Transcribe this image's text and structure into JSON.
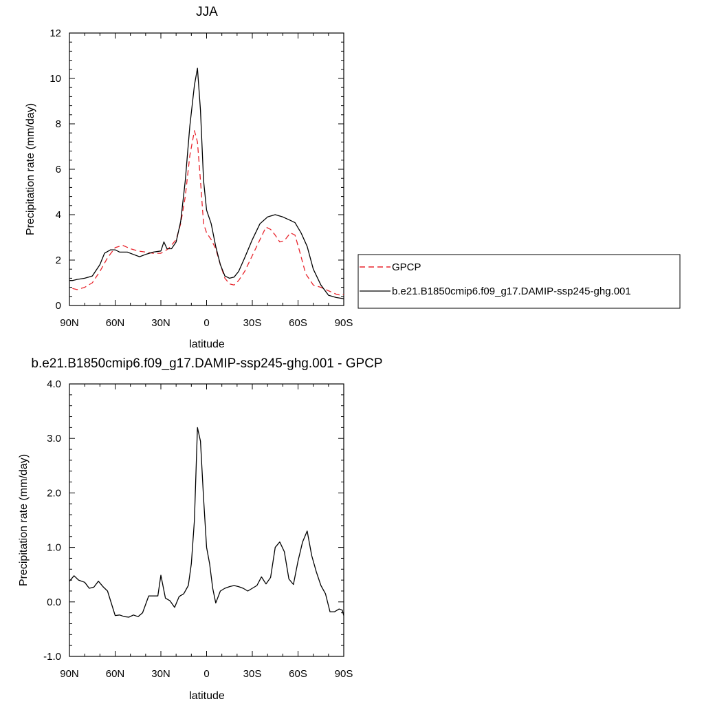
{
  "chart_data": [
    {
      "type": "line",
      "title": "JJA",
      "xlabel": "latitude",
      "ylabel": "Precipitation rate (mm/day)",
      "xlim": [
        -90,
        90
      ],
      "ylim": [
        0,
        12
      ],
      "x_tick_values": [
        -90,
        -60,
        -30,
        0,
        30,
        60,
        90
      ],
      "x_tick_labels": [
        "90N",
        "60N",
        "30N",
        "0",
        "30S",
        "60S",
        "90S"
      ],
      "y_tick_values": [
        0,
        2,
        4,
        6,
        8,
        10,
        12
      ],
      "y_tick_labels": [
        "0",
        "2",
        "4",
        "6",
        "8",
        "10",
        "12"
      ],
      "legend_position": "right",
      "series": [
        {
          "name": "GPCP",
          "color": "#e8242c",
          "dash": "dashed",
          "points": [
            [
              -88,
              0.75
            ],
            [
              -85,
              0.7
            ],
            [
              -80,
              0.8
            ],
            [
              -75,
              1.0
            ],
            [
              -70,
              1.5
            ],
            [
              -65,
              2.1
            ],
            [
              -60,
              2.55
            ],
            [
              -55,
              2.65
            ],
            [
              -50,
              2.5
            ],
            [
              -45,
              2.4
            ],
            [
              -40,
              2.35
            ],
            [
              -35,
              2.3
            ],
            [
              -30,
              2.3
            ],
            [
              -25,
              2.5
            ],
            [
              -20,
              2.9
            ],
            [
              -17,
              3.6
            ],
            [
              -14,
              4.8
            ],
            [
              -11,
              6.6
            ],
            [
              -8,
              7.7
            ],
            [
              -6,
              7.2
            ],
            [
              -4,
              5.5
            ],
            [
              -2,
              3.6
            ],
            [
              0,
              3.2
            ],
            [
              3,
              2.9
            ],
            [
              6,
              2.5
            ],
            [
              9,
              1.8
            ],
            [
              12,
              1.2
            ],
            [
              15,
              0.95
            ],
            [
              18,
              0.9
            ],
            [
              21,
              1.1
            ],
            [
              25,
              1.5
            ],
            [
              30,
              2.2
            ],
            [
              35,
              2.9
            ],
            [
              39,
              3.45
            ],
            [
              42,
              3.35
            ],
            [
              45,
              3.1
            ],
            [
              48,
              2.8
            ],
            [
              51,
              2.85
            ],
            [
              55,
              3.2
            ],
            [
              58,
              3.1
            ],
            [
              61,
              2.4
            ],
            [
              65,
              1.4
            ],
            [
              70,
              0.9
            ],
            [
              75,
              0.8
            ],
            [
              80,
              0.65
            ],
            [
              85,
              0.5
            ],
            [
              88,
              0.45
            ],
            [
              90,
              0.5
            ]
          ]
        },
        {
          "name": "b.e21.B1850cmip6.f09_g17.DAMIP-ssp245-ghg.001",
          "color": "#000000",
          "dash": "solid",
          "points": [
            [
              -90,
              1.1
            ],
            [
              -88,
              1.1
            ],
            [
              -85,
              1.15
            ],
            [
              -80,
              1.2
            ],
            [
              -75,
              1.3
            ],
            [
              -70,
              1.8
            ],
            [
              -67,
              2.3
            ],
            [
              -63,
              2.45
            ],
            [
              -60,
              2.45
            ],
            [
              -57,
              2.35
            ],
            [
              -52,
              2.35
            ],
            [
              -48,
              2.25
            ],
            [
              -44,
              2.15
            ],
            [
              -40,
              2.25
            ],
            [
              -35,
              2.35
            ],
            [
              -30,
              2.4
            ],
            [
              -28,
              2.8
            ],
            [
              -26,
              2.5
            ],
            [
              -23,
              2.5
            ],
            [
              -20,
              2.8
            ],
            [
              -17,
              3.7
            ],
            [
              -14,
              5.5
            ],
            [
              -11,
              7.9
            ],
            [
              -8,
              9.7
            ],
            [
              -6,
              10.45
            ],
            [
              -4,
              8.6
            ],
            [
              -2,
              5.5
            ],
            [
              0,
              4.2
            ],
            [
              3,
              3.6
            ],
            [
              6,
              2.6
            ],
            [
              9,
              1.8
            ],
            [
              12,
              1.3
            ],
            [
              15,
              1.2
            ],
            [
              18,
              1.25
            ],
            [
              21,
              1.5
            ],
            [
              25,
              2.1
            ],
            [
              30,
              2.9
            ],
            [
              35,
              3.6
            ],
            [
              40,
              3.9
            ],
            [
              45,
              4.0
            ],
            [
              50,
              3.9
            ],
            [
              55,
              3.75
            ],
            [
              58,
              3.65
            ],
            [
              62,
              3.2
            ],
            [
              66,
              2.6
            ],
            [
              70,
              1.6
            ],
            [
              75,
              0.9
            ],
            [
              80,
              0.45
            ],
            [
              85,
              0.35
            ],
            [
              90,
              0.3
            ]
          ]
        }
      ]
    },
    {
      "type": "line",
      "title": "b.e21.B1850cmip6.f09_g17.DAMIP-ssp245-ghg.001 - GPCP",
      "xlabel": "latitude",
      "ylabel": "Precipitation rate (mm/day)",
      "xlim": [
        -90,
        90
      ],
      "ylim": [
        -1,
        4
      ],
      "x_tick_values": [
        -90,
        -60,
        -30,
        0,
        30,
        60,
        90
      ],
      "x_tick_labels": [
        "90N",
        "60N",
        "30N",
        "0",
        "30S",
        "60S",
        "90S"
      ],
      "y_tick_values": [
        -1,
        0,
        1,
        2,
        3,
        4
      ],
      "y_tick_labels": [
        "-1.0",
        "0.0",
        "1.0",
        "2.0",
        "3.0",
        "4.0"
      ],
      "series": [
        {
          "color": "#000000",
          "dash": "solid",
          "points": [
            [
              -90,
              0.38
            ],
            [
              -87,
              0.48
            ],
            [
              -84,
              0.4
            ],
            [
              -80,
              0.36
            ],
            [
              -77,
              0.25
            ],
            [
              -74,
              0.27
            ],
            [
              -71,
              0.38
            ],
            [
              -68,
              0.28
            ],
            [
              -65,
              0.2
            ],
            [
              -60,
              -0.25
            ],
            [
              -57,
              -0.24
            ],
            [
              -54,
              -0.27
            ],
            [
              -51,
              -0.28
            ],
            [
              -48,
              -0.24
            ],
            [
              -45,
              -0.27
            ],
            [
              -42,
              -0.2
            ],
            [
              -38,
              0.11
            ],
            [
              -35,
              0.11
            ],
            [
              -32,
              0.11
            ],
            [
              -30,
              0.49
            ],
            [
              -27,
              0.07
            ],
            [
              -24,
              0.02
            ],
            [
              -21,
              -0.1
            ],
            [
              -18,
              0.1
            ],
            [
              -15,
              0.15
            ],
            [
              -12,
              0.3
            ],
            [
              -10,
              0.7
            ],
            [
              -8,
              1.5
            ],
            [
              -6,
              3.2
            ],
            [
              -4,
              2.95
            ],
            [
              -2,
              1.9
            ],
            [
              0,
              1.0
            ],
            [
              2,
              0.7
            ],
            [
              4,
              0.25
            ],
            [
              6,
              -0.02
            ],
            [
              9,
              0.2
            ],
            [
              12,
              0.25
            ],
            [
              15,
              0.28
            ],
            [
              18,
              0.3
            ],
            [
              21,
              0.28
            ],
            [
              24,
              0.25
            ],
            [
              27,
              0.2
            ],
            [
              30,
              0.25
            ],
            [
              33,
              0.3
            ],
            [
              36,
              0.46
            ],
            [
              39,
              0.33
            ],
            [
              42,
              0.45
            ],
            [
              45,
              1.0
            ],
            [
              48,
              1.1
            ],
            [
              51,
              0.92
            ],
            [
              54,
              0.42
            ],
            [
              57,
              0.32
            ],
            [
              60,
              0.75
            ],
            [
              63,
              1.1
            ],
            [
              66,
              1.3
            ],
            [
              69,
              0.85
            ],
            [
              72,
              0.55
            ],
            [
              75,
              0.3
            ],
            [
              78,
              0.15
            ],
            [
              81,
              -0.18
            ],
            [
              84,
              -0.18
            ],
            [
              87,
              -0.13
            ],
            [
              89,
              -0.15
            ],
            [
              90,
              -0.25
            ]
          ]
        }
      ]
    }
  ]
}
